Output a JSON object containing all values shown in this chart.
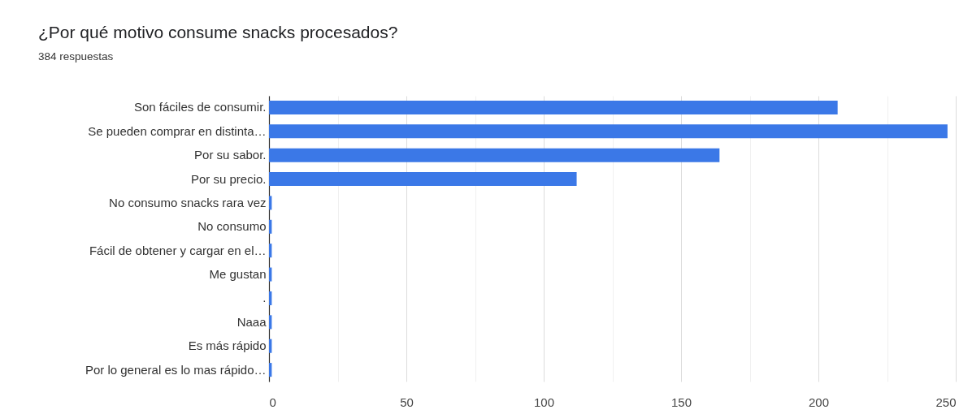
{
  "chart_data": {
    "type": "bar",
    "orientation": "horizontal",
    "title": "¿Por qué motivo consume snacks procesados?",
    "subtitle": "384 respuestas",
    "categories": [
      "Son fáciles de consumir.",
      "Se pueden comprar en distinta…",
      "Por su sabor.",
      "Por su precio.",
      "No consumo snacks rara vez",
      "No consumo",
      "Fácil de obtener y cargar en el…",
      "Me gustan",
      ".",
      "Naaa",
      "Es más rápido",
      "Por lo general es lo mas rápido…"
    ],
    "values": [
      207,
      247,
      164,
      112,
      1,
      1,
      1,
      1,
      1,
      1,
      1,
      1
    ],
    "color": "#3b78e7",
    "xlim": [
      0,
      250
    ],
    "xticks": [
      0,
      {
        "value": 25,
        "label": null
      },
      50,
      {
        "value": 75,
        "label": null
      },
      100,
      {
        "value": 125,
        "label": null
      },
      150,
      {
        "value": 175,
        "label": null
      },
      200,
      {
        "value": 225,
        "label": null
      },
      250
    ],
    "grid": "x"
  }
}
